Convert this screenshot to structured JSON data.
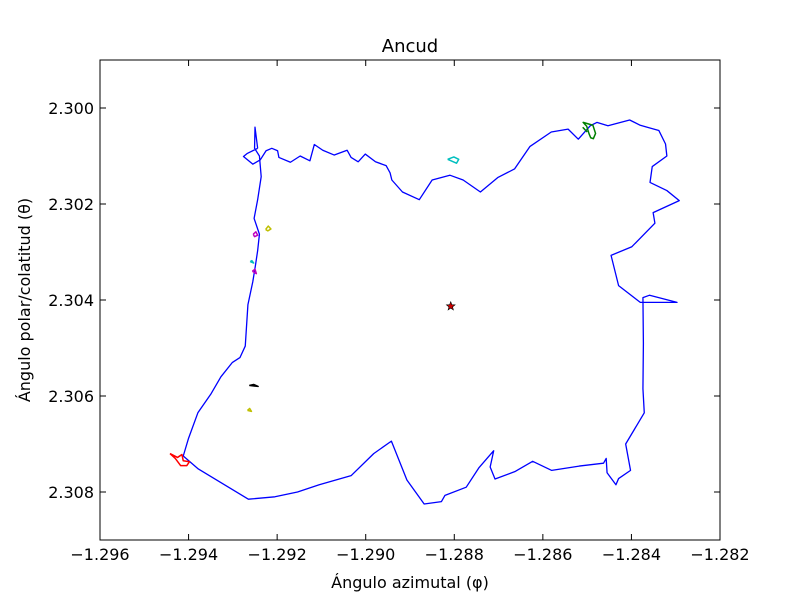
{
  "chart_data": {
    "type": "line",
    "title": "Ancud",
    "xlabel": "Ángulo azimutal (φ)",
    "ylabel": "Ángulo polar/colatitud (θ)",
    "xlim": [
      -1.296,
      -1.282
    ],
    "ylim": [
      2.309,
      2.299
    ],
    "y_inverted": true,
    "grid": false,
    "xticks": [
      -1.296,
      -1.294,
      -1.292,
      -1.29,
      -1.288,
      -1.286,
      -1.284,
      -1.282
    ],
    "xtick_labels": [
      "−1.296",
      "−1.294",
      "−1.292",
      "−1.290",
      "−1.288",
      "−1.286",
      "−1.284",
      "−1.282"
    ],
    "yticks": [
      2.3,
      2.302,
      2.304,
      2.306,
      2.308
    ],
    "ytick_labels": [
      "2.300",
      "2.302",
      "2.304",
      "2.306",
      "2.308"
    ],
    "center_marker": {
      "x": -1.28808,
      "y": 2.30413,
      "color": "#cc0000",
      "marker": "star"
    },
    "series": [
      {
        "color": "#0000ff",
        "x": [
          -1.29244,
          -1.29268,
          -1.29276,
          -1.29255,
          -1.29238,
          -1.29225,
          -1.29212,
          -1.29199,
          -1.29196,
          -1.2917,
          -1.29148,
          -1.29126,
          -1.29116,
          -1.29097,
          -1.29071,
          -1.29042,
          -1.29033,
          -1.29017,
          -1.29001,
          -1.28978,
          -1.28954,
          -1.28945,
          -1.28941,
          -1.28917,
          -1.28879,
          -1.2885,
          -1.2881,
          -1.2878,
          -1.28741,
          -1.28702,
          -1.28664,
          -1.28629,
          -1.28581,
          -1.28543,
          -1.2852,
          -1.28493,
          -1.28478,
          -1.28453,
          -1.28404,
          -1.2838,
          -1.28338,
          -1.28323,
          -1.2832,
          -1.28353,
          -1.28358,
          -1.2832,
          -1.28292,
          -1.28351,
          -1.28347,
          -1.28399,
          -1.28446,
          -1.28429,
          -1.2838,
          -1.28297,
          -1.28359,
          -1.28374,
          -1.28373,
          -1.28374,
          -1.28371,
          -1.28413,
          -1.28402,
          -1.28429,
          -1.28435,
          -1.28455,
          -1.28457,
          -1.28463,
          -1.28518,
          -1.2858,
          -1.28623,
          -1.28662,
          -1.28708,
          -1.28719,
          -1.28711,
          -1.28744,
          -1.28773,
          -1.28821,
          -1.28829,
          -1.28868,
          -1.28907,
          -1.28942,
          -1.28982,
          -1.29033,
          -1.29105,
          -1.29154,
          -1.29205,
          -1.29265,
          -1.29378,
          -1.29412,
          -1.294,
          -1.29379,
          -1.29349,
          -1.29327,
          -1.29301,
          -1.29284,
          -1.29272,
          -1.29266,
          -1.29255,
          -1.29249,
          -1.29244,
          -1.2924,
          -1.29252,
          -1.29244,
          -1.29236,
          -1.2924,
          -1.29251,
          -1.2925,
          -1.29244
        ],
        "y": [
          2.30084,
          2.30095,
          2.30101,
          2.30117,
          2.30108,
          2.30089,
          2.30084,
          2.30089,
          2.30103,
          2.30113,
          2.301,
          2.3011,
          2.30076,
          2.30088,
          2.30098,
          2.30088,
          2.30103,
          2.30112,
          2.30096,
          2.30112,
          2.3012,
          2.30135,
          2.3015,
          2.30175,
          2.30191,
          2.3015,
          2.3014,
          2.3015,
          2.30175,
          2.30145,
          2.30127,
          2.3008,
          2.3005,
          2.30044,
          2.30065,
          2.30037,
          2.3003,
          2.30037,
          2.30025,
          2.30036,
          2.30047,
          2.30075,
          2.301,
          2.30122,
          2.30155,
          2.30172,
          2.30193,
          2.30218,
          2.3024,
          2.30289,
          2.30307,
          2.3037,
          2.30405,
          2.30405,
          2.3039,
          2.30395,
          2.3049,
          2.30585,
          2.30635,
          2.307,
          2.30755,
          2.30772,
          2.30785,
          2.3076,
          2.3073,
          2.3074,
          2.30746,
          2.30755,
          2.30736,
          2.30757,
          2.30773,
          2.30748,
          2.30714,
          2.30749,
          2.3079,
          2.30807,
          2.3082,
          2.30825,
          2.30775,
          2.30694,
          2.3072,
          2.30766,
          2.30785,
          2.308,
          2.3081,
          2.30815,
          2.30752,
          2.30725,
          2.30688,
          2.30635,
          2.30595,
          2.3056,
          2.3053,
          2.3052,
          2.30496,
          2.3041,
          2.30362,
          2.30328,
          2.30297,
          2.30263,
          2.3023,
          2.30191,
          2.30143,
          2.301,
          2.30084,
          2.3004,
          2.30084
        ]
      },
      {
        "color": "#008000",
        "x": [
          -1.28496,
          -1.28501,
          -1.28509,
          -1.28487,
          -1.28481,
          -1.28486,
          -1.28492,
          -1.28496
        ],
        "y": [
          2.30053,
          2.30038,
          2.3003,
          2.30036,
          2.30053,
          2.30064,
          2.30062,
          2.30053
        ]
      },
      {
        "color": "#00bfbf",
        "x": [
          -1.28815,
          -1.28801,
          -1.2879,
          -1.28795,
          -1.28815
        ],
        "y": [
          2.30107,
          2.30102,
          2.30107,
          2.30115,
          2.30107
        ]
      },
      {
        "color": "#bfbf00",
        "x": [
          -1.29226,
          -1.2922,
          -1.29214,
          -1.29221,
          -1.29226
        ],
        "y": [
          2.30253,
          2.30246,
          2.30252,
          2.30256,
          2.30253
        ]
      },
      {
        "color": "#bf00bf",
        "x": [
          -1.29254,
          -1.29248,
          -1.29244,
          -1.29251,
          -1.29254
        ],
        "y": [
          2.30263,
          2.30258,
          2.30265,
          2.30268,
          2.30263
        ]
      },
      {
        "color": "#00bfbf",
        "x": [
          -1.29261,
          -1.29257,
          -1.29253,
          -1.29261
        ],
        "y": [
          2.3032,
          2.30318,
          2.30323,
          2.3032
        ]
      },
      {
        "color": "#bf00bf",
        "x": [
          -1.29256,
          -1.2925,
          -1.29247,
          -1.29256
        ],
        "y": [
          2.3034,
          2.30336,
          2.30345,
          2.3034
        ]
      },
      {
        "color": "#000000",
        "x": [
          -1.29263,
          -1.29253,
          -1.29243,
          -1.29263
        ],
        "y": [
          2.30578,
          2.30576,
          2.3058,
          2.30578
        ]
      },
      {
        "color": "#bfbf00",
        "x": [
          -1.29267,
          -1.29262,
          -1.29258,
          -1.29267
        ],
        "y": [
          2.3063,
          2.30626,
          2.30632,
          2.3063
        ]
      },
      {
        "color": "#ff0000",
        "x": [
          -1.29442,
          -1.29425,
          -1.29415,
          -1.29412,
          -1.29398,
          -1.29404,
          -1.29418,
          -1.2943,
          -1.29442
        ],
        "y": [
          2.3072,
          2.30728,
          2.30722,
          2.30735,
          2.30737,
          2.30745,
          2.30745,
          2.3073,
          2.3072
        ]
      },
      {
        "color": "#008000",
        "x": [
          -1.2851,
          -1.285
        ],
        "y": [
          2.3004,
          2.3005
        ]
      }
    ]
  }
}
